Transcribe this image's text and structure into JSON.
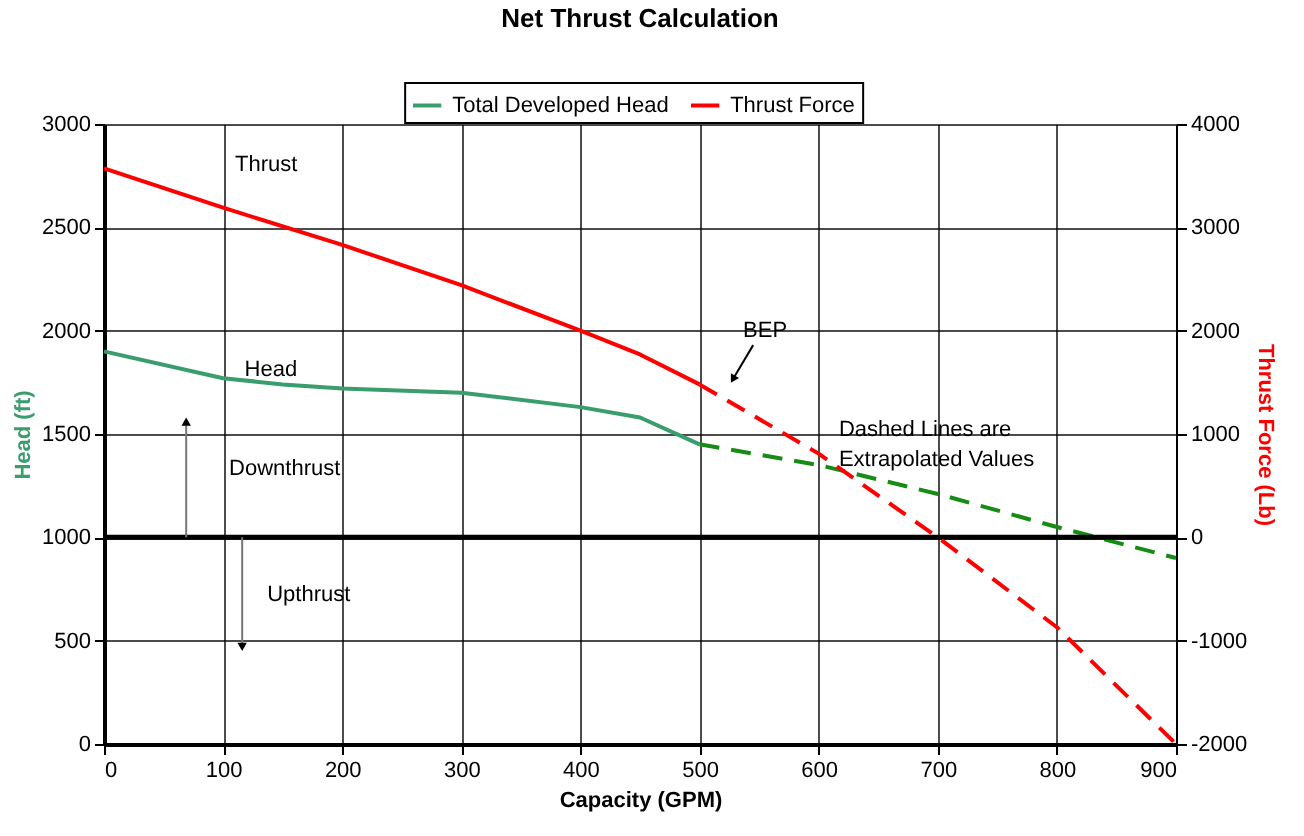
{
  "chart_data": {
    "type": "line",
    "title": "Net Thrust Calculation",
    "xlabel": "Capacity (GPM)",
    "ylabel": "Head (ft)",
    "y2label": "Thrust Force (Lb)",
    "series": [
      {
        "name": "Total Developed Head",
        "color": "#3a9d6e",
        "x": [
          0,
          100,
          150,
          200,
          300,
          400,
          450,
          500
        ],
        "values": [
          1900,
          1770,
          1740,
          1720,
          1700,
          1630,
          1580,
          1450
        ]
      },
      {
        "color": "#168c16",
        "line_style": "dashed",
        "x": [
          500,
          600,
          700,
          800,
          900
        ],
        "values": [
          1450,
          1350,
          1210,
          1050,
          900
        ]
      },
      {
        "name": "Thrust Force",
        "color": "#ff0000",
        "axis": "y2",
        "x": [
          0,
          100,
          200,
          300,
          400,
          450,
          500
        ],
        "values": [
          3570,
          3190,
          2830,
          2440,
          2000,
          1770,
          1480
        ]
      },
      {
        "color": "#ff0000",
        "line_style": "dashed",
        "axis": "y2",
        "x": [
          500,
          600,
          700,
          800,
          900
        ],
        "values": [
          1480,
          810,
          0,
          -870,
          -2000
        ]
      }
    ],
    "xlim": [
      0,
      900
    ],
    "xticks": [
      0,
      100,
      200,
      300,
      400,
      500,
      600,
      700,
      800,
      900
    ],
    "ylim": [
      0,
      3000
    ],
    "yticks": [
      0,
      500,
      1000,
      1500,
      2000,
      2500,
      3000
    ],
    "y2lim": [
      -2000,
      4000
    ],
    "y2ticks": [
      -2000,
      -1000,
      0,
      1000,
      2000,
      3000,
      4000
    ],
    "ref_lines": [
      {
        "axis": "y",
        "value": 1000,
        "color": "#000000"
      }
    ],
    "annotations": [
      "Thrust",
      "Head",
      "Downthrust",
      "Upthrust",
      "BEP",
      "Dashed Lines are\nExtrapolated Values"
    ],
    "grid": true,
    "legend": "top"
  }
}
